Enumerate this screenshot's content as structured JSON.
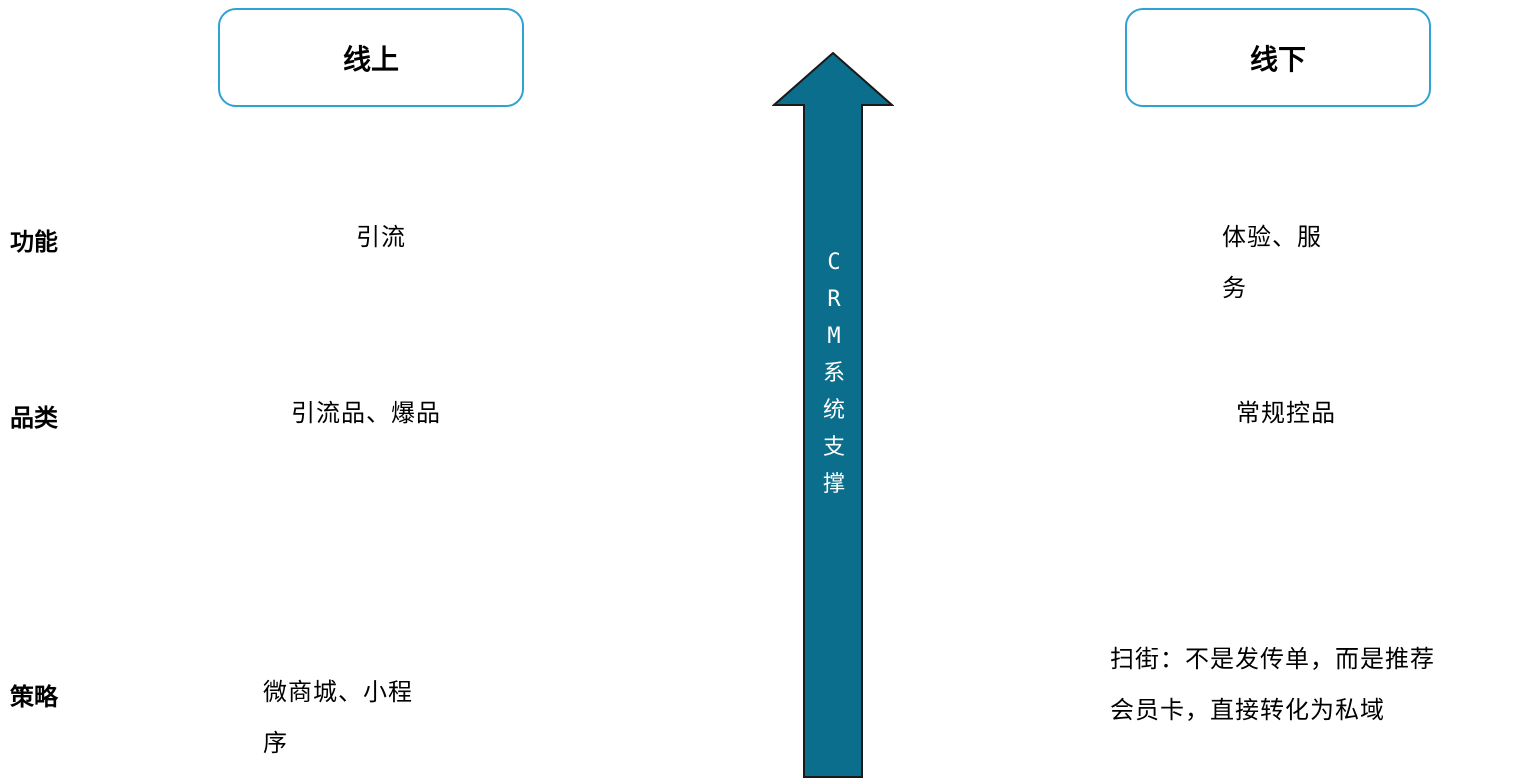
{
  "header": {
    "online": "线上",
    "offline": "线下"
  },
  "rows": {
    "function": {
      "label": "功能",
      "online_lines": [
        "引流"
      ],
      "offline_lines": [
        "体验、服",
        "务"
      ]
    },
    "category": {
      "label": "品类",
      "online_lines": [
        "引流品、爆品"
      ],
      "offline_lines": [
        "常规控品"
      ]
    },
    "strategy": {
      "label": "策略",
      "online_lines": [
        "微商城、小程",
        "序"
      ],
      "offline_lines": [
        "扫街：不是发传单，而是推荐",
        "会员卡，直接转化为私域"
      ]
    }
  },
  "arrow": {
    "chars": [
      "C",
      "R",
      "M",
      "系",
      "统",
      "支",
      "撑"
    ],
    "fill_color": "#0b6e8c",
    "stroke_color": "#1a1a1a"
  },
  "colors": {
    "box_border": "#2ea3d3"
  }
}
